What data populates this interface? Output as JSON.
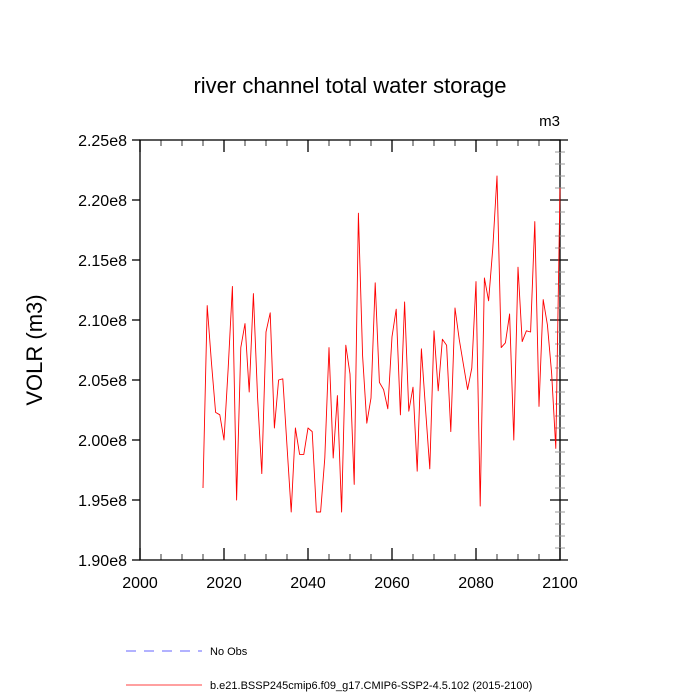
{
  "chart_data": {
    "type": "line",
    "title": "river channel total water storage",
    "units_label": "m3",
    "ylabel": "VOLR  (m3)",
    "xlabel": "",
    "xlim": [
      2000,
      2100
    ],
    "ylim": [
      190000000,
      225000000
    ],
    "x_ticks": [
      2000,
      2020,
      2040,
      2060,
      2080,
      2100
    ],
    "x_tick_labels": [
      "2000",
      "2020",
      "2040",
      "2060",
      "2080",
      "2100"
    ],
    "y_ticks": [
      190000000,
      195000000,
      200000000,
      205000000,
      210000000,
      215000000,
      220000000,
      225000000
    ],
    "y_tick_labels": [
      "1.90e8",
      "1.95e8",
      "2.00e8",
      "2.05e8",
      "2.10e8",
      "2.15e8",
      "2.20e8",
      "2.25e8"
    ],
    "grid": false,
    "legend_position": "bottom",
    "series": [
      {
        "name": "b.e21.BSSP245cmip6.f09_g17.CMIP6-SSP2-4.5.102 (2015-2100)",
        "color": "#ff0000",
        "style": "solid",
        "x": [
          2015,
          2016,
          2017,
          2018,
          2019,
          2020,
          2021,
          2022,
          2023,
          2024,
          2025,
          2026,
          2027,
          2028,
          2029,
          2030,
          2031,
          2032,
          2033,
          2034,
          2035,
          2036,
          2037,
          2038,
          2039,
          2040,
          2041,
          2042,
          2043,
          2044,
          2045,
          2046,
          2047,
          2048,
          2049,
          2050,
          2051,
          2052,
          2053,
          2054,
          2055,
          2056,
          2057,
          2058,
          2059,
          2060,
          2061,
          2062,
          2063,
          2064,
          2065,
          2066,
          2067,
          2068,
          2069,
          2070,
          2071,
          2072,
          2073,
          2074,
          2075,
          2076,
          2077,
          2078,
          2079,
          2080,
          2081,
          2082,
          2083,
          2084,
          2085,
          2086,
          2087,
          2088,
          2089,
          2090,
          2091,
          2092,
          2093,
          2094,
          2095,
          2096,
          2097,
          2098,
          2099,
          2100
        ],
        "values": [
          196.0,
          211.2,
          206.5,
          202.3,
          202.1,
          200.0,
          206.0,
          212.8,
          195.0,
          207.7,
          209.7,
          204.0,
          212.2,
          203.5,
          197.2,
          209.0,
          210.6,
          201.0,
          205.0,
          205.1,
          199.5,
          194.0,
          201.0,
          198.8,
          198.8,
          201.0,
          200.7,
          194.0,
          194.0,
          198.5,
          207.7,
          198.5,
          203.7,
          194.0,
          207.9,
          205.5,
          196.3,
          218.9,
          207.0,
          201.4,
          203.5,
          213.1,
          204.8,
          204.2,
          202.6,
          208.6,
          210.9,
          202.1,
          211.5,
          202.4,
          204.4,
          197.4,
          207.6,
          202.5,
          197.6,
          209.1,
          204.1,
          208.4,
          207.9,
          200.7,
          211.0,
          208.4,
          206.3,
          204.2,
          206.0,
          213.2,
          194.5,
          213.5,
          211.6,
          216.0,
          222.0,
          207.7,
          208.1,
          210.5,
          200.0,
          214.4,
          208.2,
          209.1,
          209.0,
          218.2,
          202.8,
          211.7,
          209.6,
          205.6,
          199.3,
          221.0
        ]
      },
      {
        "name": "No Obs",
        "color": "#6666ff",
        "style": "dashed",
        "x": [],
        "values": []
      }
    ]
  }
}
